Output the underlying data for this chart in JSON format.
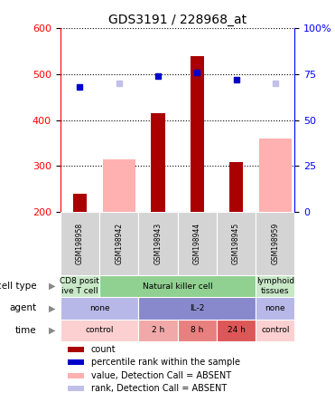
{
  "title": "GDS3191 / 228968_at",
  "samples": [
    "GSM198958",
    "GSM198942",
    "GSM198943",
    "GSM198944",
    "GSM198945",
    "GSM198959"
  ],
  "counts": [
    240,
    null,
    415,
    540,
    308,
    null
  ],
  "absent_values": [
    null,
    315,
    null,
    null,
    null,
    360
  ],
  "percentile_ranks": [
    68,
    null,
    74,
    76,
    72,
    null
  ],
  "absent_ranks": [
    null,
    70,
    null,
    null,
    null,
    70
  ],
  "ylim_left": [
    200,
    600
  ],
  "ylim_right": [
    0,
    100
  ],
  "yticks_left": [
    200,
    300,
    400,
    500,
    600
  ],
  "yticks_right": [
    0,
    25,
    50,
    75,
    100
  ],
  "cell_type_groups": [
    {
      "label": "CD8 posit\nive T cell",
      "start": 0,
      "end": 1,
      "color": "#c8e8c8"
    },
    {
      "label": "Natural killer cell",
      "start": 1,
      "end": 5,
      "color": "#90d090"
    },
    {
      "label": "lymphoid\ntissues",
      "start": 5,
      "end": 6,
      "color": "#c8e8c8"
    }
  ],
  "agent_groups": [
    {
      "label": "none",
      "start": 0,
      "end": 2,
      "color": "#b8b8e8"
    },
    {
      "label": "IL-2",
      "start": 2,
      "end": 5,
      "color": "#8888cc"
    },
    {
      "label": "none",
      "start": 5,
      "end": 6,
      "color": "#b8b8e8"
    }
  ],
  "time_groups": [
    {
      "label": "control",
      "start": 0,
      "end": 2,
      "color": "#fcd0d0"
    },
    {
      "label": "2 h",
      "start": 2,
      "end": 3,
      "color": "#f0a8a8"
    },
    {
      "label": "8 h",
      "start": 3,
      "end": 4,
      "color": "#e88080"
    },
    {
      "label": "24 h",
      "start": 4,
      "end": 5,
      "color": "#dc5858"
    },
    {
      "label": "control",
      "start": 5,
      "end": 6,
      "color": "#fcd0d0"
    }
  ],
  "row_labels": [
    "cell type",
    "agent",
    "time"
  ],
  "bar_color": "#aa0000",
  "absent_bar_color": "#ffb0b0",
  "dot_color": "#0000cc",
  "absent_dot_color": "#c0c0e8",
  "legend_items": [
    {
      "color": "#aa0000",
      "label": "count"
    },
    {
      "color": "#0000cc",
      "label": "percentile rank within the sample"
    },
    {
      "color": "#ffb0b0",
      "label": "value, Detection Call = ABSENT"
    },
    {
      "color": "#c0c0e8",
      "label": "rank, Detection Call = ABSENT"
    }
  ],
  "sample_bg_color": "#d4d4d4",
  "bar_width": 0.35
}
